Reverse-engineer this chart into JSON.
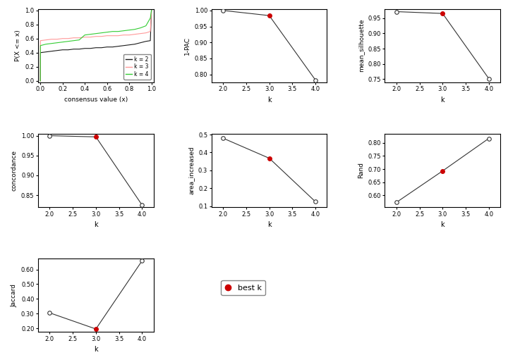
{
  "cdf": {
    "k2": {
      "x": [
        0.0,
        0.001,
        0.05,
        0.1,
        0.15,
        0.2,
        0.25,
        0.3,
        0.35,
        0.4,
        0.45,
        0.5,
        0.55,
        0.6,
        0.65,
        0.7,
        0.75,
        0.8,
        0.85,
        0.9,
        0.95,
        0.99,
        1.0
      ],
      "y": [
        0.0,
        0.4,
        0.41,
        0.42,
        0.43,
        0.44,
        0.44,
        0.45,
        0.45,
        0.46,
        0.46,
        0.47,
        0.47,
        0.48,
        0.48,
        0.49,
        0.5,
        0.51,
        0.52,
        0.54,
        0.56,
        0.57,
        1.0
      ],
      "color": "#1a1a1a"
    },
    "k3": {
      "x": [
        0.0,
        0.001,
        0.05,
        0.1,
        0.15,
        0.2,
        0.25,
        0.3,
        0.35,
        0.4,
        0.45,
        0.5,
        0.55,
        0.6,
        0.65,
        0.7,
        0.75,
        0.8,
        0.85,
        0.9,
        0.95,
        0.99,
        1.0
      ],
      "y": [
        0.0,
        0.57,
        0.58,
        0.59,
        0.59,
        0.6,
        0.6,
        0.61,
        0.61,
        0.62,
        0.62,
        0.63,
        0.63,
        0.64,
        0.64,
        0.64,
        0.65,
        0.65,
        0.66,
        0.67,
        0.68,
        0.7,
        1.0
      ],
      "color": "#ff9999"
    },
    "k4": {
      "x": [
        0.0,
        0.001,
        0.05,
        0.1,
        0.15,
        0.2,
        0.25,
        0.3,
        0.35,
        0.4,
        0.45,
        0.5,
        0.55,
        0.6,
        0.65,
        0.7,
        0.75,
        0.8,
        0.85,
        0.9,
        0.95,
        0.99,
        1.0
      ],
      "y": [
        0.0,
        0.5,
        0.52,
        0.53,
        0.54,
        0.55,
        0.56,
        0.57,
        0.58,
        0.65,
        0.66,
        0.67,
        0.68,
        0.69,
        0.7,
        0.7,
        0.71,
        0.72,
        0.73,
        0.75,
        0.78,
        0.89,
        1.0
      ],
      "color": "#33cc33"
    }
  },
  "pac": {
    "k": [
      2,
      3,
      4
    ],
    "values": [
      1.0,
      0.984,
      0.782
    ],
    "best_k": 3,
    "ylabel": "1-PAC",
    "ylim": [
      0.775,
      1.005
    ],
    "yticks": [
      0.8,
      0.85,
      0.9,
      0.95,
      1.0
    ]
  },
  "silhouette": {
    "k": [
      2,
      3,
      4
    ],
    "values": [
      0.971,
      0.965,
      0.752
    ],
    "best_k": 3,
    "ylabel": "mean_silhouette",
    "ylim": [
      0.74,
      0.98
    ],
    "yticks": [
      0.75,
      0.8,
      0.85,
      0.9,
      0.95
    ]
  },
  "concordance": {
    "k": [
      2,
      3,
      4
    ],
    "values": [
      1.0,
      0.997,
      0.825
    ],
    "best_k": 3,
    "ylabel": "concordance",
    "ylim": [
      0.82,
      1.005
    ],
    "yticks": [
      0.85,
      0.9,
      0.95,
      1.0
    ]
  },
  "area_increased": {
    "k": [
      2,
      3,
      4
    ],
    "values": [
      0.48,
      0.368,
      0.125
    ],
    "best_k": 3,
    "ylabel": "area_increased",
    "ylim": [
      0.095,
      0.505
    ],
    "yticks": [
      0.1,
      0.2,
      0.3,
      0.4,
      0.5
    ]
  },
  "rand": {
    "k": [
      2,
      3,
      4
    ],
    "values": [
      0.573,
      0.693,
      0.817
    ],
    "best_k": 3,
    "ylabel": "Rand",
    "ylim": [
      0.555,
      0.835
    ],
    "yticks": [
      0.6,
      0.65,
      0.7,
      0.75,
      0.8
    ]
  },
  "jaccard": {
    "k": [
      2,
      3,
      4
    ],
    "values": [
      0.305,
      0.195,
      0.66
    ],
    "best_k": 3,
    "ylabel": "Jaccard",
    "ylim": [
      0.175,
      0.675
    ],
    "yticks": [
      0.2,
      0.3,
      0.4,
      0.5,
      0.6
    ]
  },
  "line_color": "#333333",
  "open_marker_color": "#333333",
  "best_k_color": "#cc0000",
  "marker_size": 4,
  "bg_color": "#ffffff"
}
